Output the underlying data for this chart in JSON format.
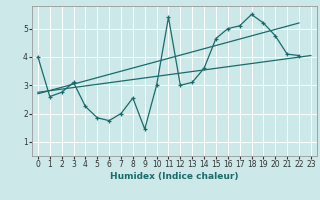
{
  "xlabel": "Humidex (Indice chaleur)",
  "bg_color": "#cce8e8",
  "line_color": "#1a6b6b",
  "grid_color": "#ffffff",
  "xlim": [
    -0.5,
    23.5
  ],
  "ylim": [
    0.5,
    5.8
  ],
  "yticks": [
    1,
    2,
    3,
    4,
    5
  ],
  "xticks": [
    0,
    1,
    2,
    3,
    4,
    5,
    6,
    7,
    8,
    9,
    10,
    11,
    12,
    13,
    14,
    15,
    16,
    17,
    18,
    19,
    20,
    21,
    22,
    23
  ],
  "zigzag_x": [
    0,
    1,
    2,
    3,
    4,
    5,
    6,
    7,
    8,
    9,
    10,
    11,
    12,
    13,
    14,
    15,
    16,
    17,
    18,
    19,
    20,
    21,
    22
  ],
  "zigzag_y": [
    4.0,
    2.6,
    2.75,
    3.1,
    2.25,
    1.85,
    1.75,
    2.0,
    2.55,
    1.45,
    3.0,
    5.4,
    3.0,
    3.1,
    3.6,
    4.65,
    5.0,
    5.1,
    5.5,
    5.2,
    4.75,
    4.1,
    4.05
  ],
  "trend1_x": [
    0,
    23
  ],
  "trend1_y": [
    2.75,
    4.05
  ],
  "trend2_x": [
    0,
    22
  ],
  "trend2_y": [
    2.7,
    5.2
  ]
}
